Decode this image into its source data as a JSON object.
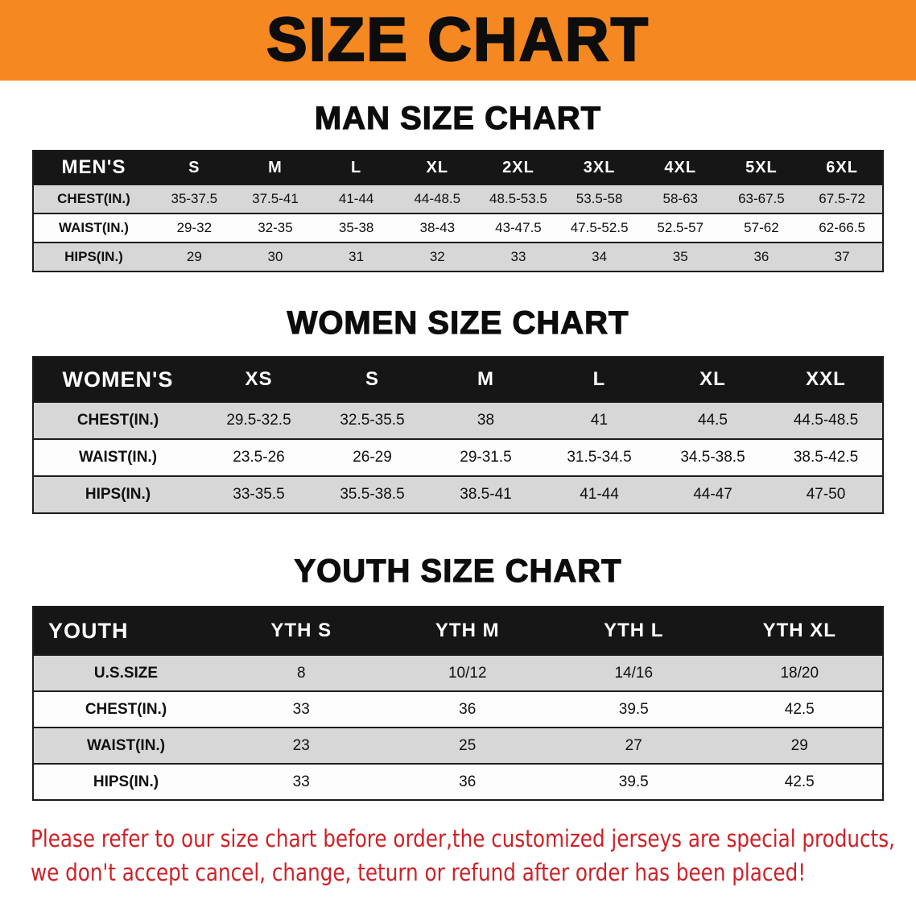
{
  "colors": {
    "accent-orange": "#f58820",
    "header-black": "#161616",
    "row-gray": "#d7d7d7",
    "row-white": "#fdfdfd",
    "border-black": "#1c1c1c",
    "footer-red": "#ce2127"
  },
  "banner": {
    "title": "SIZE CHART"
  },
  "sections": [
    {
      "id": "men",
      "heading": "MAN SIZE CHART",
      "table": {
        "header": [
          "MEN'S",
          "S",
          "M",
          "L",
          "XL",
          "2XL",
          "3XL",
          "4XL",
          "5XL",
          "6XL"
        ],
        "rows": [
          [
            "CHEST(IN.)",
            "35-37.5",
            "37.5-41",
            "41-44",
            "44-48.5",
            "48.5-53.5",
            "53.5-58",
            "58-63",
            "63-67.5",
            "67.5-72"
          ],
          [
            "WAIST(IN.)",
            "29-32",
            "32-35",
            "35-38",
            "38-43",
            "43-47.5",
            "47.5-52.5",
            "52.5-57",
            "57-62",
            "62-66.5"
          ],
          [
            "HIPS(IN.)",
            "29",
            "30",
            "31",
            "32",
            "33",
            "34",
            "35",
            "36",
            "37"
          ]
        ]
      }
    },
    {
      "id": "women",
      "heading": "WOMEN SIZE CHART",
      "table": {
        "header": [
          "WOMEN'S",
          "XS",
          "S",
          "M",
          "L",
          "XL",
          "XXL"
        ],
        "rows": [
          [
            "CHEST(IN.)",
            "29.5-32.5",
            "32.5-35.5",
            "38",
            "41",
            "44.5",
            "44.5-48.5"
          ],
          [
            "WAIST(IN.)",
            "23.5-26",
            "26-29",
            "29-31.5",
            "31.5-34.5",
            "34.5-38.5",
            "38.5-42.5"
          ],
          [
            "HIPS(IN.)",
            "33-35.5",
            "35.5-38.5",
            "38.5-41",
            "41-44",
            "44-47",
            "47-50"
          ]
        ]
      }
    },
    {
      "id": "youth",
      "heading": "YOUTH SIZE CHART",
      "table": {
        "header": [
          "YOUTH",
          "YTH S",
          "YTH M",
          "YTH L",
          "YTH XL"
        ],
        "rows": [
          [
            "U.S.SIZE",
            "8",
            "10/12",
            "14/16",
            "18/20"
          ],
          [
            "CHEST(IN.)",
            "33",
            "36",
            "39.5",
            "42.5"
          ],
          [
            "WAIST(IN.)",
            "23",
            "25",
            "27",
            "29"
          ],
          [
            "HIPS(IN.)",
            "33",
            "36",
            "39.5",
            "42.5"
          ]
        ]
      }
    }
  ],
  "footer": {
    "line1": "Please refer to our size chart before order,the customized jerseys are special products,",
    "line2": "we don't accept cancel, change, teturn or refund after order has been placed!"
  }
}
